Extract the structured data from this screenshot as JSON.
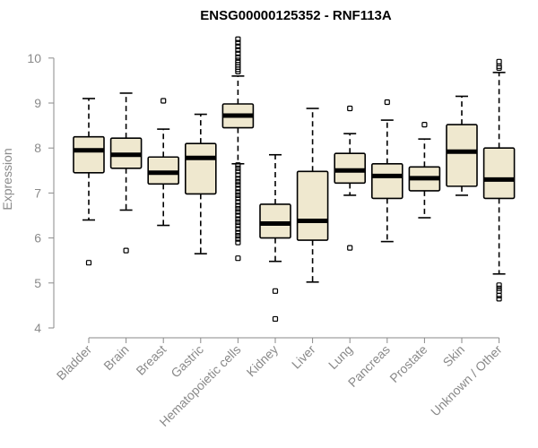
{
  "colors": {
    "box_fill": "#efe8cf",
    "box_stroke": "#000000",
    "axis": "#8a8a8a",
    "text": "#8a8a8a",
    "title": "#000000"
  },
  "chart_data": {
    "type": "boxplot",
    "title": "ENSG00000125352 - RNF113A",
    "xlabel": "",
    "ylabel": "Expression",
    "ylim": [
      4,
      10.5
    ],
    "yticks": [
      4,
      5,
      6,
      7,
      8,
      9,
      10
    ],
    "grid": false,
    "categories": [
      "Bladder",
      "Brain",
      "Breast",
      "Gastric",
      "Hematopoietic cells",
      "Kidney",
      "Liver",
      "Lung",
      "Pancreas",
      "Prostate",
      "Skin",
      "Unknown / Other"
    ],
    "boxes": [
      {
        "category": "Bladder",
        "whisker_low": 6.4,
        "q1": 7.45,
        "median": 7.95,
        "q3": 8.25,
        "whisker_high": 9.1,
        "outliers": [
          5.45
        ]
      },
      {
        "category": "Brain",
        "whisker_low": 6.62,
        "q1": 7.55,
        "median": 7.85,
        "q3": 8.22,
        "whisker_high": 9.22,
        "outliers": [
          5.72
        ]
      },
      {
        "category": "Breast",
        "whisker_low": 6.28,
        "q1": 7.2,
        "median": 7.45,
        "q3": 7.8,
        "whisker_high": 8.42,
        "outliers": [
          9.05
        ]
      },
      {
        "category": "Gastric",
        "whisker_low": 5.65,
        "q1": 6.98,
        "median": 7.78,
        "q3": 8.1,
        "whisker_high": 8.75,
        "outliers": []
      },
      {
        "category": "Hematopoietic cells",
        "whisker_low": 7.65,
        "q1": 8.45,
        "median": 8.72,
        "q3": 8.98,
        "whisker_high": 9.6,
        "outliers": [
          10.42,
          10.34,
          10.26,
          10.18,
          10.1,
          10.02,
          9.95,
          9.9,
          9.85,
          9.8,
          9.75,
          9.7,
          7.62,
          7.55,
          7.48,
          7.4,
          7.32,
          7.25,
          7.18,
          7.1,
          7.02,
          6.95,
          6.88,
          6.8,
          6.72,
          6.65,
          6.58,
          6.5,
          6.42,
          6.35,
          6.28,
          6.2,
          6.12,
          6.05,
          5.98,
          5.9,
          5.55
        ]
      },
      {
        "category": "Kidney",
        "whisker_low": 5.48,
        "q1": 6.0,
        "median": 6.32,
        "q3": 6.75,
        "whisker_high": 7.85,
        "outliers": [
          4.82,
          4.2
        ]
      },
      {
        "category": "Liver",
        "whisker_low": 5.02,
        "q1": 5.95,
        "median": 6.38,
        "q3": 7.48,
        "whisker_high": 8.88,
        "outliers": []
      },
      {
        "category": "Lung",
        "whisker_low": 6.95,
        "q1": 7.22,
        "median": 7.5,
        "q3": 7.88,
        "whisker_high": 8.32,
        "outliers": [
          8.88,
          5.78
        ]
      },
      {
        "category": "Pancreas",
        "whisker_low": 5.92,
        "q1": 6.88,
        "median": 7.38,
        "q3": 7.65,
        "whisker_high": 8.62,
        "outliers": [
          9.02
        ]
      },
      {
        "category": "Prostate",
        "whisker_low": 6.45,
        "q1": 7.05,
        "median": 7.33,
        "q3": 7.58,
        "whisker_high": 8.2,
        "outliers": [
          8.52
        ]
      },
      {
        "category": "Skin",
        "whisker_low": 6.95,
        "q1": 7.15,
        "median": 7.92,
        "q3": 8.52,
        "whisker_high": 9.15,
        "outliers": []
      },
      {
        "category": "Unknown / Other",
        "whisker_low": 5.2,
        "q1": 6.88,
        "median": 7.3,
        "q3": 8.0,
        "whisker_high": 9.68,
        "outliers": [
          9.92,
          9.82,
          9.78,
          4.95,
          4.88,
          4.82,
          4.72,
          4.65
        ]
      }
    ]
  }
}
